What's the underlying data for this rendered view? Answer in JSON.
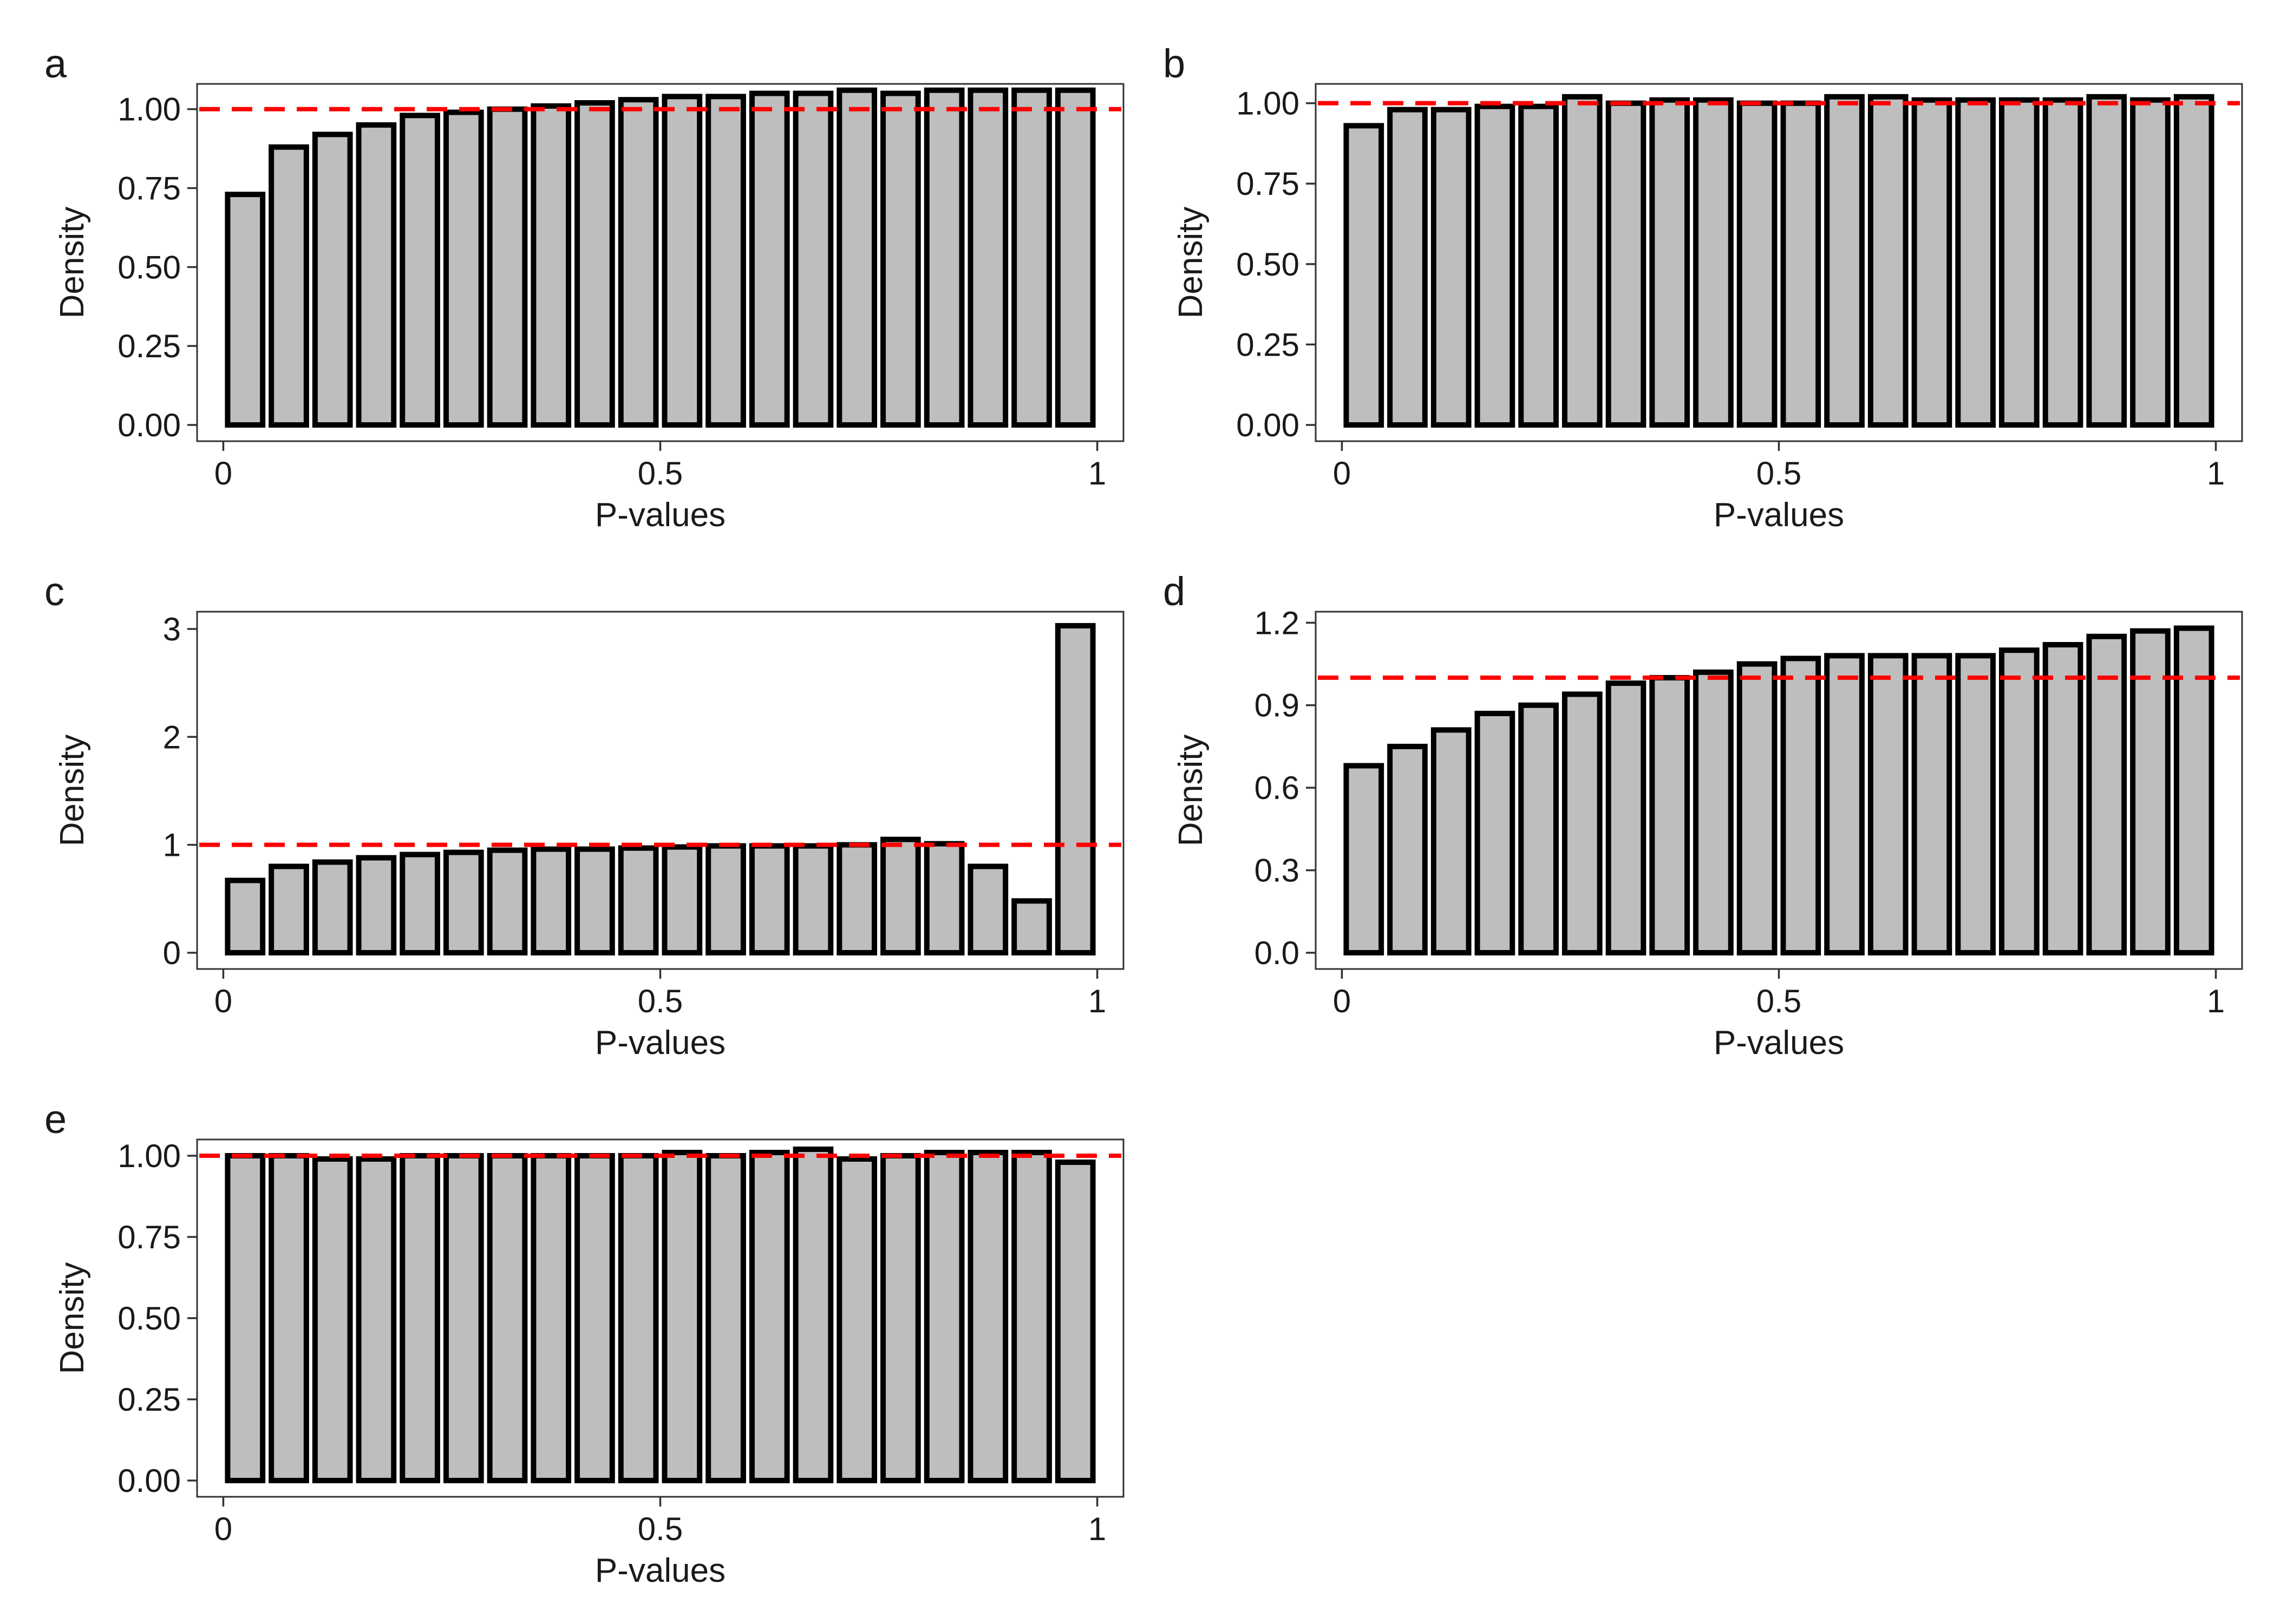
{
  "chart_data": [
    {
      "panel": "a",
      "type": "bar",
      "title": "",
      "xlabel": "P-values",
      "ylabel": "Density",
      "bin_width": 0.05,
      "x_ticks": [
        0,
        0.5,
        1
      ],
      "x_tick_labels": [
        "0",
        "0.5",
        "1"
      ],
      "y_ticks": [
        0,
        0.25,
        0.5,
        0.75,
        1.0
      ],
      "y_tick_labels": [
        "0.00",
        "0.25",
        "0.50",
        "0.75",
        "1.00"
      ],
      "ylim": [
        0,
        1.08
      ],
      "reference_line": 1.0,
      "values": [
        0.73,
        0.88,
        0.92,
        0.95,
        0.98,
        0.99,
        1.0,
        1.01,
        1.02,
        1.03,
        1.04,
        1.04,
        1.05,
        1.05,
        1.06,
        1.05,
        1.06,
        1.06,
        1.06,
        1.06
      ]
    },
    {
      "panel": "b",
      "type": "bar",
      "title": "",
      "xlabel": "P-values",
      "ylabel": "Density",
      "bin_width": 0.05,
      "x_ticks": [
        0,
        0.5,
        1
      ],
      "x_tick_labels": [
        "0",
        "0.5",
        "1"
      ],
      "y_ticks": [
        0,
        0.25,
        0.5,
        0.75,
        1.0
      ],
      "y_tick_labels": [
        "0.00",
        "0.25",
        "0.50",
        "0.75",
        "1.00"
      ],
      "ylim": [
        0,
        1.06
      ],
      "reference_line": 1.0,
      "values": [
        0.93,
        0.98,
        0.98,
        0.99,
        0.99,
        1.02,
        1.0,
        1.01,
        1.01,
        1.0,
        1.0,
        1.02,
        1.02,
        1.01,
        1.01,
        1.01,
        1.01,
        1.02,
        1.01,
        1.02
      ]
    },
    {
      "panel": "c",
      "type": "bar",
      "title": "",
      "xlabel": "P-values",
      "ylabel": "Density",
      "bin_width": 0.05,
      "x_ticks": [
        0,
        0.5,
        1
      ],
      "x_tick_labels": [
        "0",
        "0.5",
        "1"
      ],
      "y_ticks": [
        0,
        1,
        2,
        3
      ],
      "y_tick_labels": [
        "0",
        "1",
        "2",
        "3"
      ],
      "ylim": [
        0,
        3.16
      ],
      "reference_line": 1.0,
      "values": [
        0.67,
        0.8,
        0.84,
        0.88,
        0.91,
        0.93,
        0.95,
        0.96,
        0.96,
        0.97,
        0.98,
        0.99,
        0.99,
        0.99,
        1.0,
        1.05,
        1.01,
        0.8,
        0.48,
        3.03
      ]
    },
    {
      "panel": "d",
      "type": "bar",
      "title": "",
      "xlabel": "P-values",
      "ylabel": "Density",
      "bin_width": 0.05,
      "x_ticks": [
        0,
        0.5,
        1
      ],
      "x_tick_labels": [
        "0",
        "0.5",
        "1"
      ],
      "y_ticks": [
        0,
        0.3,
        0.6,
        0.9,
        1.2
      ],
      "y_tick_labels": [
        "0.0",
        "0.3",
        "0.6",
        "0.9",
        "1.2"
      ],
      "ylim": [
        0,
        1.24
      ],
      "reference_line": 1.0,
      "values": [
        0.68,
        0.75,
        0.81,
        0.87,
        0.9,
        0.94,
        0.98,
        1.0,
        1.02,
        1.05,
        1.07,
        1.08,
        1.08,
        1.08,
        1.08,
        1.1,
        1.12,
        1.15,
        1.17,
        1.18
      ]
    },
    {
      "panel": "e",
      "type": "bar",
      "title": "",
      "xlabel": "P-values",
      "ylabel": "Density",
      "bin_width": 0.05,
      "x_ticks": [
        0,
        0.5,
        1
      ],
      "x_tick_labels": [
        "0",
        "0.5",
        "1"
      ],
      "y_ticks": [
        0,
        0.25,
        0.5,
        0.75,
        1.0
      ],
      "y_tick_labels": [
        "0.00",
        "0.25",
        "0.50",
        "0.75",
        "1.00"
      ],
      "ylim": [
        0,
        1.05
      ],
      "reference_line": 1.0,
      "values": [
        1.0,
        1.0,
        0.99,
        0.99,
        1.0,
        1.0,
        1.0,
        1.0,
        1.0,
        1.0,
        1.01,
        1.0,
        1.01,
        1.02,
        0.99,
        1.0,
        1.01,
        1.01,
        1.01,
        0.98
      ]
    }
  ],
  "colors": {
    "bar_fill": "#bebebe",
    "bar_stroke": "#000000",
    "reference_line": "#ff0000",
    "frame": "#333333"
  }
}
